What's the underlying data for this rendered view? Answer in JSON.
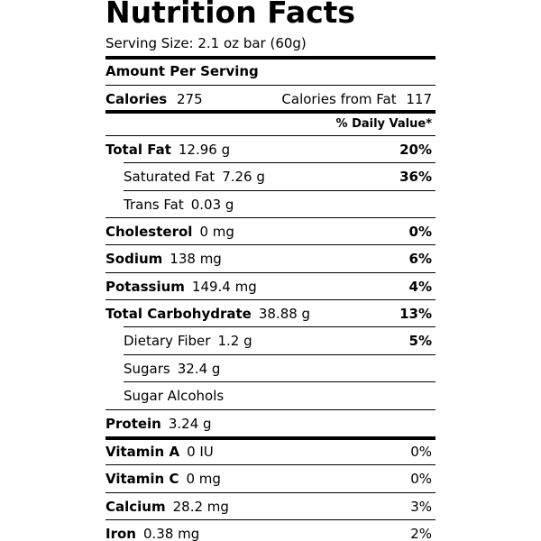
{
  "title": "Nutrition Facts",
  "serving_size": "Serving Size: 2.1 oz bar (60g)",
  "amount_per_serving": "Amount Per Serving",
  "calories": {
    "label": "Calories",
    "value": "275",
    "from_fat_label": "Calories from Fat",
    "from_fat_value": "117"
  },
  "daily_value_header": "% Daily Value*",
  "nutrients": [
    {
      "name": "Total Fat",
      "amount": "12.96 g",
      "dv": "20%",
      "indent": false
    },
    {
      "name": "Saturated Fat",
      "amount": "7.26 g",
      "dv": "36%",
      "indent": true
    },
    {
      "name": "Trans Fat",
      "amount": "0.03 g",
      "dv": null,
      "indent": true
    },
    {
      "name": "Cholesterol",
      "amount": "0 mg",
      "dv": "0%",
      "indent": false
    },
    {
      "name": "Sodium",
      "amount": "138 mg",
      "dv": "6%",
      "indent": false
    },
    {
      "name": "Potassium",
      "amount": "149.4 mg",
      "dv": "4%",
      "indent": false
    },
    {
      "name": "Total Carbohydrate",
      "amount": "38.88 g",
      "dv": "13%",
      "indent": false
    },
    {
      "name": "Dietary Fiber",
      "amount": "1.2 g",
      "dv": "5%",
      "indent": true
    },
    {
      "name": "Sugars",
      "amount": "32.4 g",
      "dv": null,
      "indent": true
    },
    {
      "name": "Sugar Alcohols",
      "amount": null,
      "dv": null,
      "indent": true
    },
    {
      "name": "Protein",
      "amount": "3.24 g",
      "dv": null,
      "indent": false
    }
  ],
  "vitamins": [
    {
      "name": "Vitamin A",
      "amount": "0 IU",
      "dv": "0%"
    },
    {
      "name": "Vitamin C",
      "amount": "0 mg",
      "dv": "0%"
    },
    {
      "name": "Calcium",
      "amount": "28.2 mg",
      "dv": "3%"
    },
    {
      "name": "Iron",
      "amount": "0.38 mg",
      "dv": "2%"
    }
  ]
}
